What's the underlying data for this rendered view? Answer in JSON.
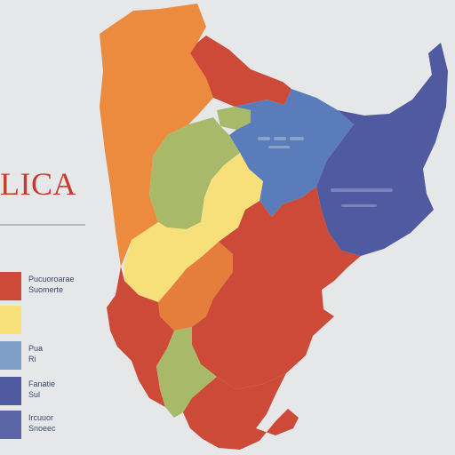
{
  "title": "LICA",
  "colors": {
    "background": "#e6e7e9",
    "orange": "#ec8a3e",
    "dark_orange": "#e57e3a",
    "red": "#cc4a37",
    "yellow": "#f7e07a",
    "green": "#a9b96a",
    "blue": "#5a7cbb",
    "navy": "#4f5aa0",
    "title_red": "#c83a2e"
  },
  "legend": [
    {
      "color": "#cc4a37",
      "line1": "Pucuoroarae",
      "line2": "Suomerte"
    },
    {
      "color": "#f7e07a",
      "line1": "",
      "line2": ""
    },
    {
      "color": "#7ea0c8",
      "line1": "Pua",
      "line2": "Ri"
    },
    {
      "color": "#4f5aa0",
      "line1": "Fanatie",
      "line2": "Sul"
    },
    {
      "color": "#5a66a5",
      "line1": "Ircuuor",
      "line2": "Snoeec"
    }
  ]
}
